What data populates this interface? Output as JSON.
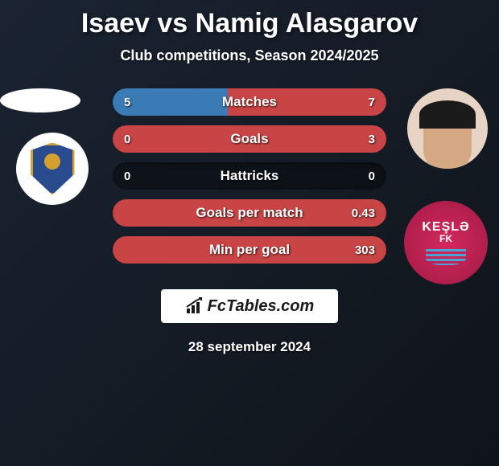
{
  "header": {
    "title": "Isaev vs Namig Alasgarov",
    "subtitle": "Club competitions, Season 2024/2025"
  },
  "stats": [
    {
      "label": "Matches",
      "left_val": "5",
      "right_val": "7",
      "left_pct": 42,
      "right_pct": 58,
      "left_color": "#3a7ab5",
      "right_color": "#c94444"
    },
    {
      "label": "Goals",
      "left_val": "0",
      "right_val": "3",
      "left_pct": 0,
      "right_pct": 100,
      "left_color": "#3a7ab5",
      "right_color": "#c94444"
    },
    {
      "label": "Hattricks",
      "left_val": "0",
      "right_val": "0",
      "left_pct": 0,
      "right_pct": 0,
      "left_color": "#3a7ab5",
      "right_color": "#c94444"
    },
    {
      "label": "Goals per match",
      "left_val": "",
      "right_val": "0.43",
      "left_pct": 0,
      "right_pct": 100,
      "left_color": "#3a7ab5",
      "right_color": "#c94444"
    },
    {
      "label": "Min per goal",
      "left_val": "",
      "right_val": "303",
      "left_pct": 0,
      "right_pct": 100,
      "left_color": "#3a7ab5",
      "right_color": "#c94444"
    }
  ],
  "right_club": {
    "name": "KEŞLƏ",
    "sub": "FK"
  },
  "brand": "FcTables.com",
  "date": "28 september 2024",
  "colors": {
    "bg_dark": "#0f1419",
    "bg_light": "#1a2332",
    "text": "#ffffff",
    "brand_bg": "#ffffff",
    "brand_text": "#1a1a1a"
  }
}
